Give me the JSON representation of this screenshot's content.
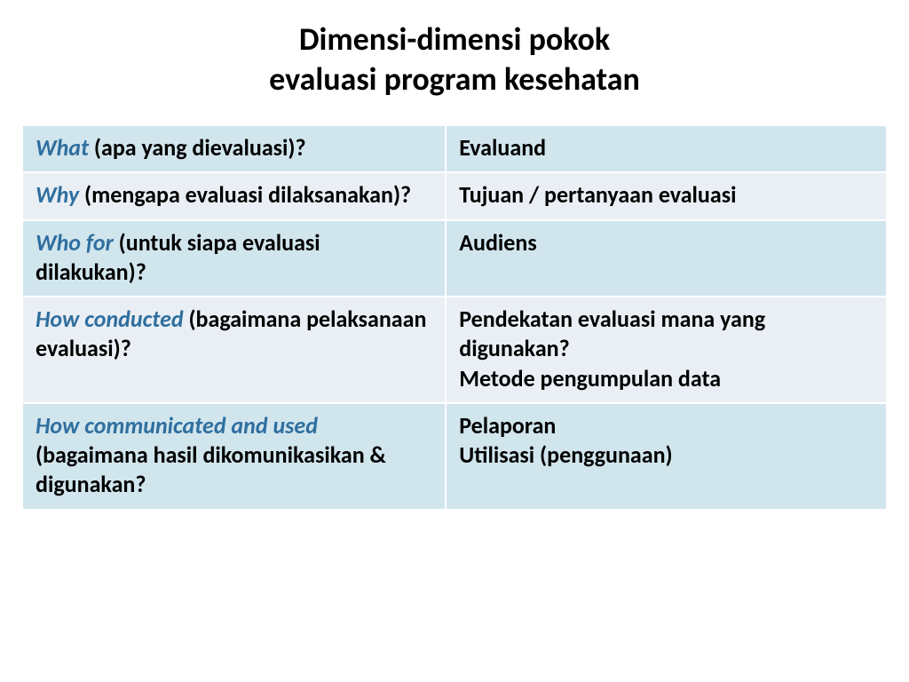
{
  "title": {
    "line1": "Dimensi-dimensi pokok",
    "line2": "evaluasi program kesehatan",
    "fontsize": 36,
    "color": "#000000"
  },
  "table": {
    "term_color": "#2f6f9f",
    "text_color": "#000000",
    "cell_fontsize": 26,
    "row_colors": {
      "a": "#d1e5ed",
      "b": "#e9eff4"
    },
    "border_color": "#ffffff",
    "rows": [
      {
        "shade": "a",
        "term": "What ",
        "rest": "(apa yang dievaluasi)?",
        "answer": " Evaluand"
      },
      {
        "shade": "b",
        "term": "Why ",
        "rest": "(mengapa evaluasi dilaksanakan)?",
        "answer": " Tujuan / pertanyaan evaluasi"
      },
      {
        "shade": "a",
        "term": "Who for ",
        "rest": "(untuk siapa evaluasi dilakukan)?",
        "answer": " Audiens"
      },
      {
        "shade": "b",
        "term": "How conducted ",
        "rest": "(bagaimana pelaksanaan evaluasi)?",
        "answer": "Pendekatan evaluasi mana yang digunakan?\nMetode pengumpulan data"
      },
      {
        "shade": "a",
        "term": "How communicated and used ",
        "rest": "(bagaimana hasil dikomunikasikan  & digunakan?",
        "answer": "Pelaporan\nUtilisasi (penggunaan)"
      }
    ]
  }
}
